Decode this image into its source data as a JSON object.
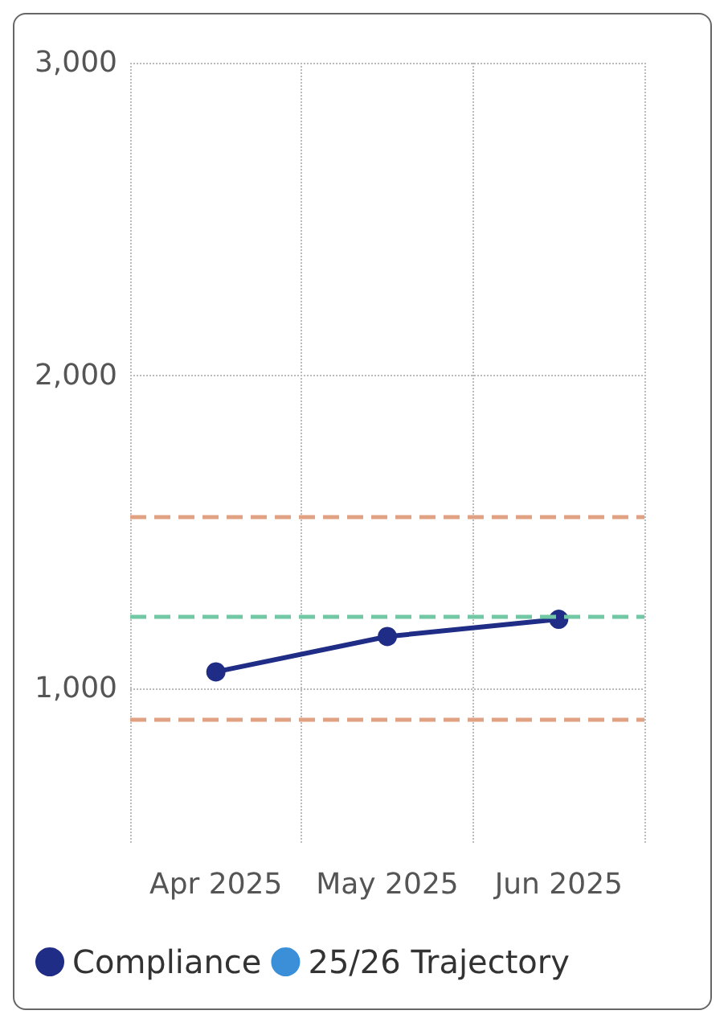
{
  "chart_data": {
    "type": "line",
    "categories": [
      "Apr 2025",
      "May 2025",
      "Jun 2025"
    ],
    "series": [
      {
        "name": "Compliance",
        "color": "#1f2d86",
        "values": [
          1052,
          1165,
          1220
        ]
      },
      {
        "name": "25/26 Trajectory",
        "color": "#3b8ed8",
        "values": [
          null,
          null,
          null
        ]
      }
    ],
    "ylim": [
      500,
      3000
    ],
    "yticks": [
      {
        "value": 1000,
        "label": "1,000"
      },
      {
        "value": 2000,
        "label": "2,000"
      },
      {
        "value": 3000,
        "label": "3,000"
      }
    ],
    "ref_lines": [
      {
        "axis": "y",
        "value": 1550,
        "color": "#e0a283",
        "line_style": "dashed"
      },
      {
        "axis": "y",
        "value": 1230,
        "color": "#72c7a4",
        "line_style": "dashed"
      },
      {
        "axis": "y",
        "value": 900,
        "color": "#e0a283",
        "line_style": "dashed"
      }
    ],
    "grid": true,
    "legend": "bottom left",
    "marker": "circle",
    "line_style": "solid"
  }
}
